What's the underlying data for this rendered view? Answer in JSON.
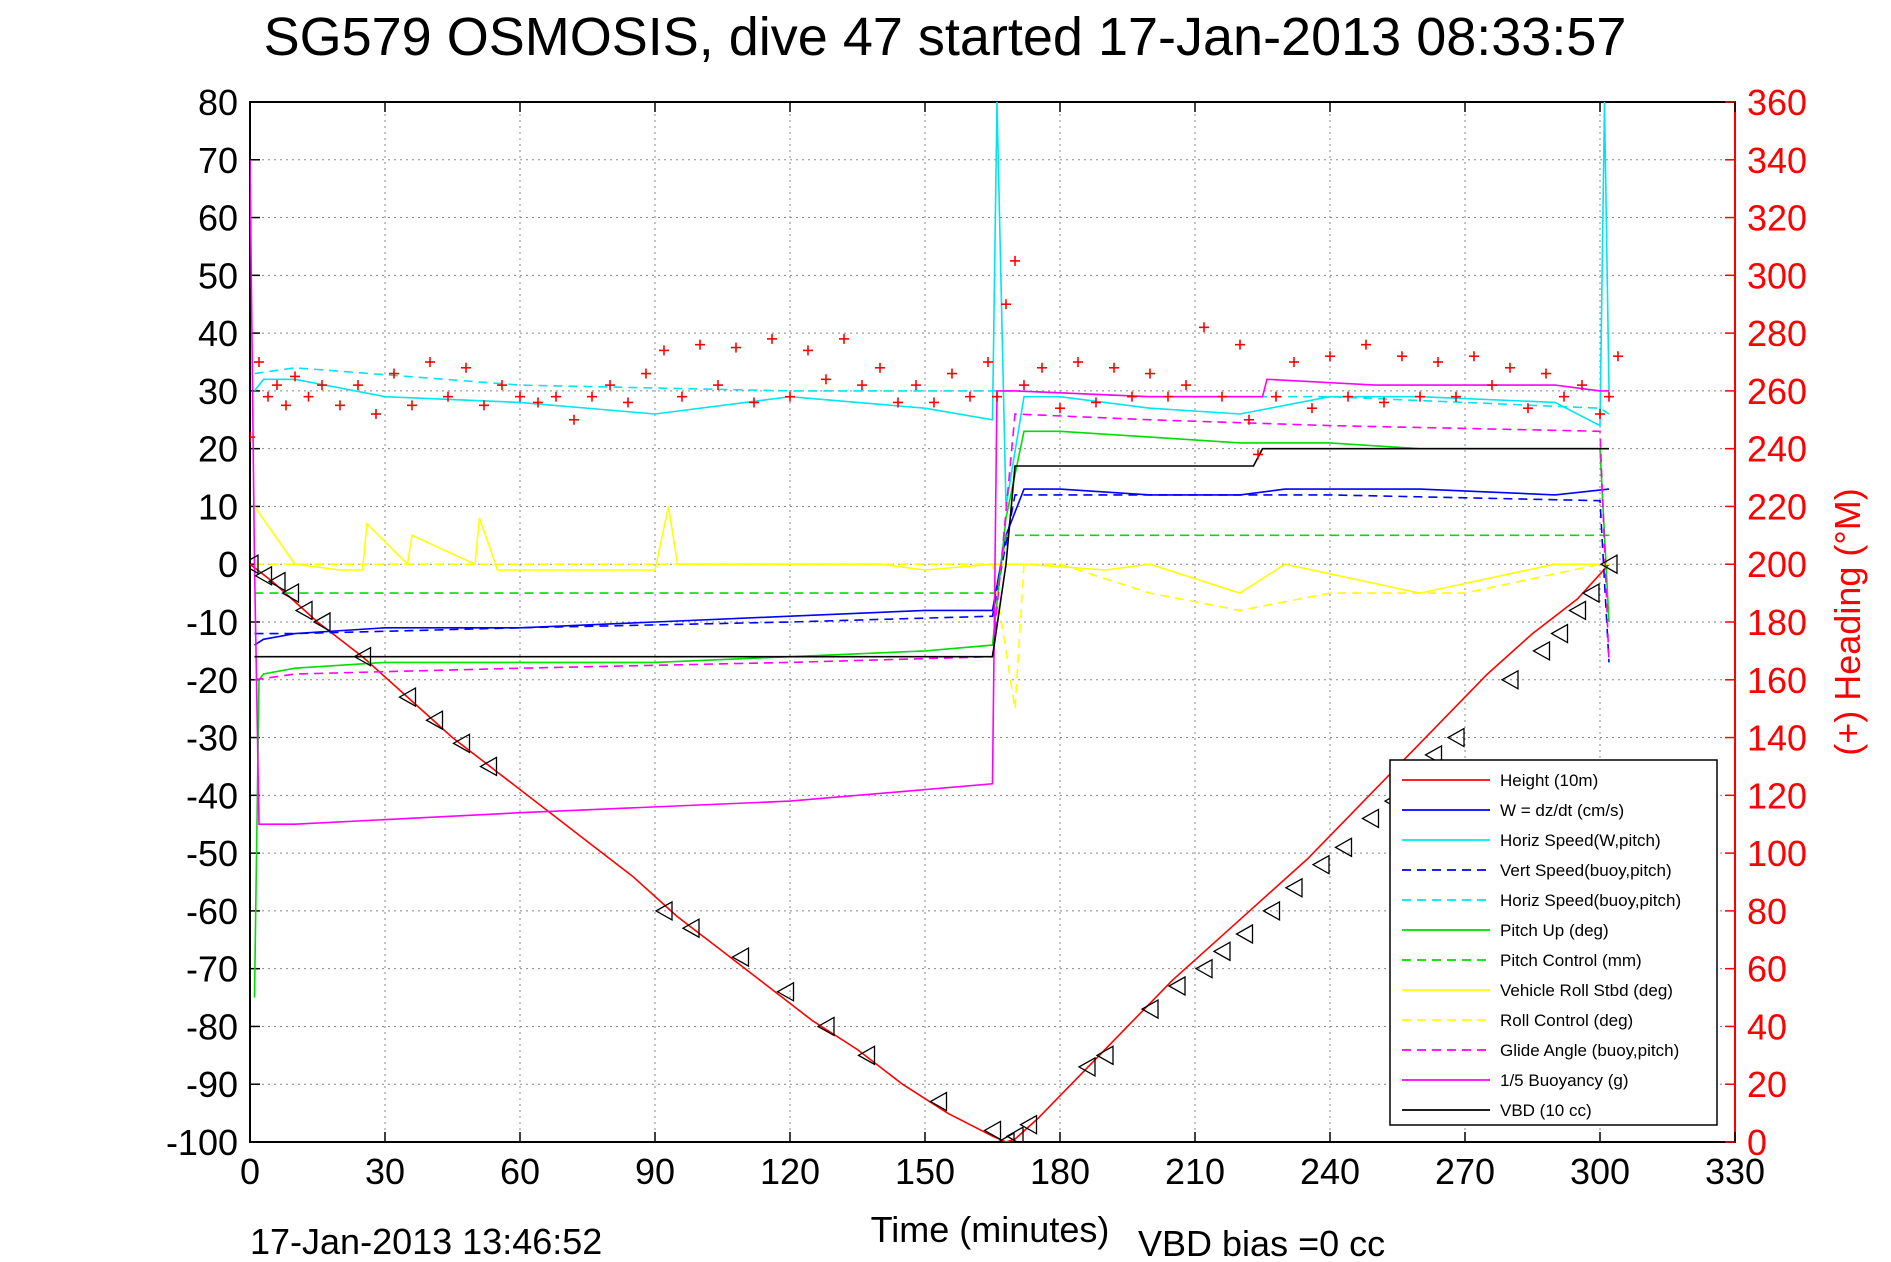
{
  "chart_data": {
    "type": "line",
    "title": "SG579 OSMOSIS, dive 47 started 17-Jan-2013 08:33:57",
    "xlabel": "Time (minutes)",
    "ylabel": "",
    "ylabel_right": "(+) Heading (°M)",
    "xlim": [
      0,
      330
    ],
    "ylim": [
      -100,
      80
    ],
    "ylim_right": [
      0,
      360
    ],
    "grid": true,
    "legend_position": "bottom-right",
    "x_ticks": [
      "0",
      "30",
      "60",
      "90",
      "120",
      "150",
      "180",
      "210",
      "240",
      "270",
      "300",
      "330"
    ],
    "y_ticks": [
      "80",
      "70",
      "60",
      "50",
      "40",
      "30",
      "20",
      "10",
      "0",
      "-10",
      "-20",
      "-30",
      "-40",
      "-50",
      "-60",
      "-70",
      "-80",
      "-90",
      "-100"
    ],
    "y_right_ticks": [
      "360",
      "340",
      "320",
      "300",
      "280",
      "260",
      "240",
      "220",
      "200",
      "180",
      "160",
      "140",
      "120",
      "100",
      "80",
      "60",
      "40",
      "20",
      "0"
    ],
    "footer_left": "17-Jan-2013 13:46:52",
    "footer_right": "VBD bias =0 cc",
    "series": [
      {
        "name": "Height (10m)",
        "color": "#ff0000",
        "dash": "solid",
        "x": [
          0,
          5,
          15,
          25,
          35,
          45,
          55,
          65,
          75,
          85,
          95,
          105,
          115,
          125,
          135,
          145,
          155,
          165,
          168,
          170,
          175,
          185,
          195,
          205,
          215,
          225,
          235,
          245,
          255,
          265,
          275,
          285,
          295,
          302
        ],
        "y": [
          0,
          -3,
          -10,
          -16,
          -23,
          -30,
          -36,
          -42,
          -48,
          -54,
          -61,
          -67,
          -73,
          -79,
          -84,
          -90,
          -95,
          -99,
          -100,
          -99.5,
          -96,
          -88,
          -80,
          -72,
          -65,
          -58,
          -51,
          -43,
          -35,
          -27,
          -19,
          -12,
          -6,
          0
        ]
      },
      {
        "name": "W = dz/dt (cm/s)",
        "color": "#0000ff",
        "dash": "solid",
        "x": [
          1,
          3,
          10,
          30,
          60,
          90,
          120,
          150,
          165,
          168,
          172,
          180,
          200,
          220,
          230,
          260,
          290,
          302
        ],
        "y": [
          -14,
          -13,
          -12,
          -11,
          -11,
          -10,
          -9,
          -8,
          -8,
          5,
          13,
          13,
          12,
          12,
          13,
          13,
          12,
          13
        ]
      },
      {
        "name": "Horiz Speed(W,pitch)",
        "color": "#00e5ee",
        "dash": "solid",
        "x": [
          1,
          3,
          10,
          30,
          60,
          90,
          120,
          150,
          165,
          166,
          168,
          172,
          180,
          200,
          220,
          240,
          260,
          290,
          300,
          301,
          302
        ],
        "y": [
          30,
          32,
          32,
          29,
          28,
          26,
          29,
          27,
          25,
          80,
          10,
          29,
          29,
          27,
          26,
          29,
          29,
          28,
          24,
          80,
          30
        ]
      },
      {
        "name": "Vert Speed(buoy,pitch)",
        "color": "#0000ff",
        "dash": "dashed",
        "x": [
          1,
          10,
          60,
          120,
          165,
          170,
          200,
          240,
          300,
          302
        ],
        "y": [
          -12,
          -12,
          -11,
          -10,
          -9,
          12,
          12,
          12,
          11,
          -17
        ]
      },
      {
        "name": "Horiz Speed(buoy,pitch)",
        "color": "#00e5ee",
        "dash": "dashed",
        "x": [
          1,
          10,
          60,
          120,
          165,
          170,
          200,
          240,
          300,
          302
        ],
        "y": [
          33,
          34,
          31,
          30,
          30,
          30,
          29,
          29,
          27,
          26
        ]
      },
      {
        "name": "Pitch Up (deg)",
        "color": "#00dd00",
        "dash": "solid",
        "x": [
          1,
          2,
          3,
          10,
          30,
          60,
          90,
          120,
          150,
          165,
          168,
          172,
          180,
          200,
          220,
          240,
          260,
          290,
          300,
          302
        ],
        "y": [
          -75,
          -20,
          -19,
          -18,
          -17,
          -17,
          -17,
          -16,
          -15,
          -14,
          8,
          23,
          23,
          22,
          21,
          21,
          20,
          20,
          20,
          -10
        ]
      },
      {
        "name": "Pitch Control (mm)",
        "color": "#00dd00",
        "dash": "dashed",
        "x": [
          1,
          5,
          166,
          168,
          302
        ],
        "y": [
          -5,
          -5,
          -5,
          5,
          5
        ]
      },
      {
        "name": "Vehicle Roll Stbd (deg)",
        "color": "#ffff00",
        "dash": "solid",
        "x": [
          1,
          10,
          20,
          25,
          26,
          35,
          36,
          50,
          51,
          55,
          90,
          93,
          95,
          100,
          140,
          150,
          165,
          168,
          172,
          190,
          200,
          220,
          230,
          260,
          290,
          300,
          302
        ],
        "y": [
          10,
          0,
          -1,
          -1,
          7,
          0,
          5,
          0,
          8,
          -1,
          -1,
          10,
          0,
          0,
          0,
          -1,
          0,
          0,
          0,
          -1,
          0,
          -5,
          0,
          -5,
          0,
          0,
          0
        ]
      },
      {
        "name": "Roll Control (deg)",
        "color": "#ffff00",
        "dash": "dashed",
        "x": [
          1,
          20,
          50,
          90,
          120,
          150,
          165,
          170,
          172,
          180,
          200,
          220,
          240,
          270,
          300,
          302
        ],
        "y": [
          0,
          0,
          0,
          0,
          0,
          0,
          0,
          -25,
          0,
          0,
          -5,
          -8,
          -5,
          -5,
          0,
          0
        ]
      },
      {
        "name": "Glide Angle (buoy,pitch)",
        "color": "#ff00ff",
        "dash": "dashed",
        "x": [
          1,
          10,
          60,
          120,
          165,
          170,
          200,
          240,
          300,
          302
        ],
        "y": [
          -20,
          -19,
          -18,
          -17,
          -16,
          26,
          25,
          24,
          23,
          -17
        ]
      },
      {
        "name": "1/5 Buoyancy (g)",
        "color": "#ff00ff",
        "dash": "solid",
        "x": [
          0,
          1,
          2,
          3,
          10,
          60,
          120,
          165,
          166,
          170,
          200,
          225,
          226,
          250,
          290,
          300,
          302
        ],
        "y": [
          70,
          0,
          -45,
          -45,
          -45,
          -43,
          -41,
          -38,
          30,
          30,
          29,
          29,
          32,
          31,
          31,
          30,
          30
        ]
      },
      {
        "name": "VBD (10 cc)",
        "color": "#000000",
        "dash": "solid",
        "x": [
          1,
          5,
          165,
          168,
          170,
          223,
          225,
          302
        ],
        "y": [
          -16,
          -16,
          -16,
          0,
          17,
          17,
          20,
          20
        ]
      }
    ],
    "heading_series": {
      "name": "(+) Heading",
      "color": "#ff0000",
      "marker": "+",
      "axis": "right",
      "x": [
        0,
        2,
        4,
        6,
        8,
        10,
        13,
        16,
        20,
        24,
        28,
        32,
        36,
        40,
        44,
        48,
        52,
        56,
        60,
        64,
        68,
        72,
        76,
        80,
        84,
        88,
        92,
        96,
        100,
        104,
        108,
        112,
        116,
        120,
        124,
        128,
        132,
        136,
        140,
        144,
        148,
        152,
        156,
        160,
        164,
        166,
        168,
        170,
        172,
        176,
        180,
        184,
        188,
        192,
        196,
        200,
        204,
        208,
        212,
        216,
        220,
        222,
        224,
        228,
        232,
        236,
        240,
        244,
        248,
        252,
        256,
        260,
        264,
        268,
        272,
        276,
        280,
        284,
        288,
        292,
        296,
        300,
        302,
        304
      ],
      "y": [
        244,
        270,
        258,
        262,
        255,
        265,
        258,
        262,
        255,
        262,
        252,
        266,
        255,
        270,
        258,
        268,
        255,
        262,
        258,
        256,
        258,
        250,
        258,
        262,
        256,
        266,
        274,
        258,
        276,
        262,
        275,
        256,
        278,
        258,
        274,
        264,
        278,
        262,
        268,
        256,
        262,
        256,
        266,
        258,
        270,
        258,
        290,
        305,
        262,
        268,
        254,
        270,
        256,
        268,
        258,
        266,
        258,
        262,
        282,
        258,
        276,
        250,
        238,
        258,
        270,
        254,
        272,
        258,
        276,
        256,
        272,
        258,
        270,
        258,
        272,
        262,
        268,
        254,
        266,
        258,
        262,
        252,
        258,
        272
      ]
    },
    "markers": {
      "name": "sample markers",
      "color": "#000000",
      "shape": "triangle",
      "x": [
        0,
        3,
        6,
        9,
        12,
        16,
        25,
        35,
        41,
        47,
        53,
        92,
        98,
        109,
        119,
        128,
        137,
        153,
        165,
        168,
        170,
        173,
        186,
        190,
        200,
        206,
        212,
        216,
        221,
        227,
        232,
        238,
        243,
        249,
        254,
        258,
        263,
        268,
        280,
        287,
        291,
        295,
        298,
        302
      ],
      "y": [
        0,
        -2,
        -3,
        -5,
        -8,
        -10,
        -16,
        -23,
        -27,
        -31,
        -35,
        -60,
        -63,
        -68,
        -74,
        -80,
        -85,
        -93,
        -98,
        -100,
        -99,
        -97,
        -87,
        -85,
        -77,
        -73,
        -70,
        -67,
        -64,
        -60,
        -56,
        -52,
        -49,
        -44,
        -41,
        -38,
        -33,
        -30,
        -20,
        -15,
        -12,
        -8,
        -5,
        0
      ]
    }
  }
}
